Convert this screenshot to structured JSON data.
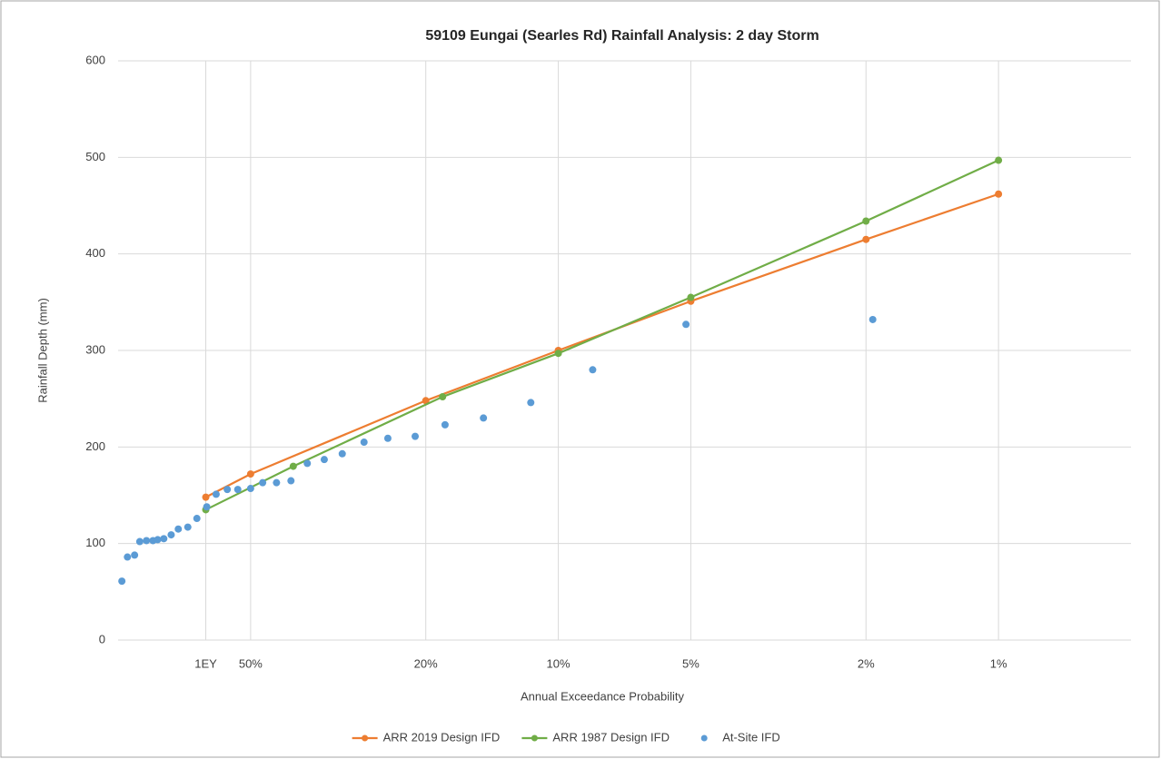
{
  "chart_data": {
    "type": "line",
    "title": "59109 Eungai (Searles Rd) Rainfall Analysis: 2 day Storm",
    "x_label": "Annual Exceedance Probability",
    "y_label": "Rainfall Depth (mm)",
    "xscale": "log",
    "xlim": [
      1,
      200
    ],
    "xticks": [
      {
        "value": 1.582,
        "label": "1EY"
      },
      {
        "value": 2,
        "label": "50%"
      },
      {
        "value": 5,
        "label": "20%"
      },
      {
        "value": 10,
        "label": "10%"
      },
      {
        "value": 20,
        "label": "5%"
      },
      {
        "value": 50,
        "label": "2%"
      },
      {
        "value": 100,
        "label": "1%"
      }
    ],
    "ylim": [
      0,
      600
    ],
    "yticks": [
      0,
      100,
      200,
      300,
      400,
      500,
      600
    ],
    "grid": true,
    "legend": "bottom",
    "series": [
      {
        "name": "ARR 2019 Design IFD",
        "type": "line",
        "color": "#ed7d31",
        "x": [
          1.582,
          2,
          5,
          10,
          20,
          50,
          100
        ],
        "values": [
          148,
          172,
          248,
          300,
          351,
          415,
          462
        ]
      },
      {
        "name": "ARR 1987 Design IFD",
        "type": "line",
        "color": "#70ad47",
        "x": [
          1.582,
          2.5,
          5.46,
          10,
          20,
          50,
          100
        ],
        "values": [
          135,
          180,
          252,
          297,
          355,
          434,
          497
        ]
      },
      {
        "name": "At-Site IFD",
        "type": "scatter",
        "color": "#5b9bd5",
        "x": [
          1.02,
          1.05,
          1.09,
          1.12,
          1.16,
          1.2,
          1.23,
          1.27,
          1.32,
          1.37,
          1.44,
          1.51,
          1.59,
          1.67,
          1.77,
          1.87,
          2.0,
          2.13,
          2.29,
          2.47,
          2.69,
          2.94,
          3.23,
          3.62,
          4.1,
          4.73,
          5.53,
          6.76,
          8.66,
          11.97,
          19.5,
          51.8
        ],
        "values": [
          61,
          86,
          88,
          102,
          103,
          103,
          104,
          105,
          109,
          115,
          117,
          126,
          138,
          151,
          156,
          156,
          157,
          163,
          163,
          165,
          183,
          187,
          193,
          205,
          209,
          211,
          223,
          230,
          246,
          280,
          327,
          332
        ]
      }
    ]
  }
}
